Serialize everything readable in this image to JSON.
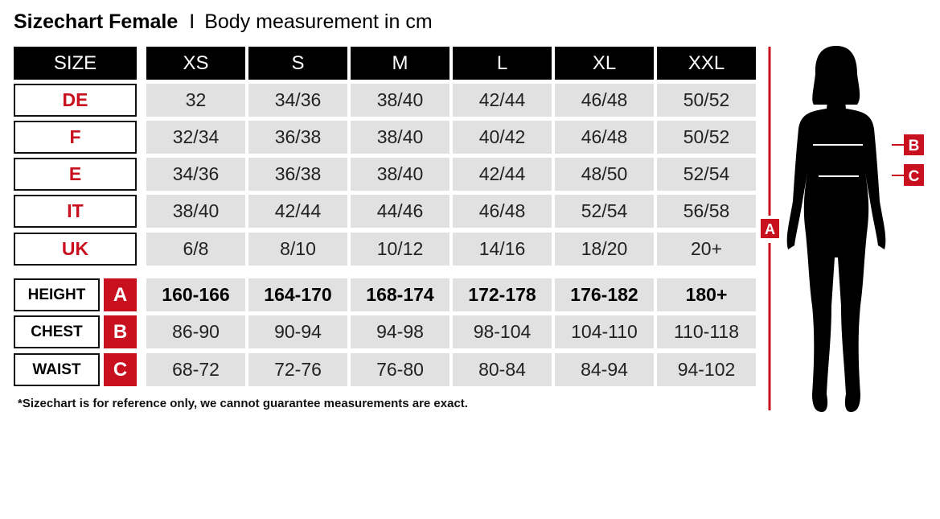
{
  "title": {
    "bold": "Sizechart Female",
    "separator": "I",
    "subtitle": "Body measurement in cm"
  },
  "header": {
    "label": "SIZE",
    "sizes": [
      "XS",
      "S",
      "M",
      "L",
      "XL",
      "XXL"
    ]
  },
  "conversion_rows": [
    {
      "label": "DE",
      "values": [
        "32",
        "34/36",
        "38/40",
        "42/44",
        "46/48",
        "50/52"
      ]
    },
    {
      "label": "F",
      "values": [
        "32/34",
        "36/38",
        "38/40",
        "40/42",
        "46/48",
        "50/52"
      ]
    },
    {
      "label": "E",
      "values": [
        "34/36",
        "36/38",
        "38/40",
        "42/44",
        "48/50",
        "52/54"
      ]
    },
    {
      "label": "IT",
      "values": [
        "38/40",
        "42/44",
        "44/46",
        "46/48",
        "52/54",
        "56/58"
      ]
    },
    {
      "label": "UK",
      "values": [
        "6/8",
        "8/10",
        "10/12",
        "14/16",
        "18/20",
        "20+"
      ]
    }
  ],
  "measurement_rows": [
    {
      "label": "HEIGHT",
      "letter": "A",
      "values": [
        "160-166",
        "164-170",
        "168-174",
        "172-178",
        "176-182",
        "180+"
      ]
    },
    {
      "label": "CHEST",
      "letter": "B",
      "values": [
        "86-90",
        "90-94",
        "94-98",
        "98-104",
        "104-110",
        "110-118"
      ]
    },
    {
      "label": "WAIST",
      "letter": "C",
      "values": [
        "68-72",
        "72-76",
        "76-80",
        "80-84",
        "84-94",
        "94-102"
      ]
    }
  ],
  "figure": {
    "height_marker": "A",
    "chest_marker": "B",
    "waist_marker": "C"
  },
  "footnote": "*Sizechart is for reference only, we cannot guarantee measurements are exact.",
  "colors": {
    "accent": "#c8101e",
    "header_bg": "#000000",
    "cell_bg": "#e1e1e1"
  }
}
